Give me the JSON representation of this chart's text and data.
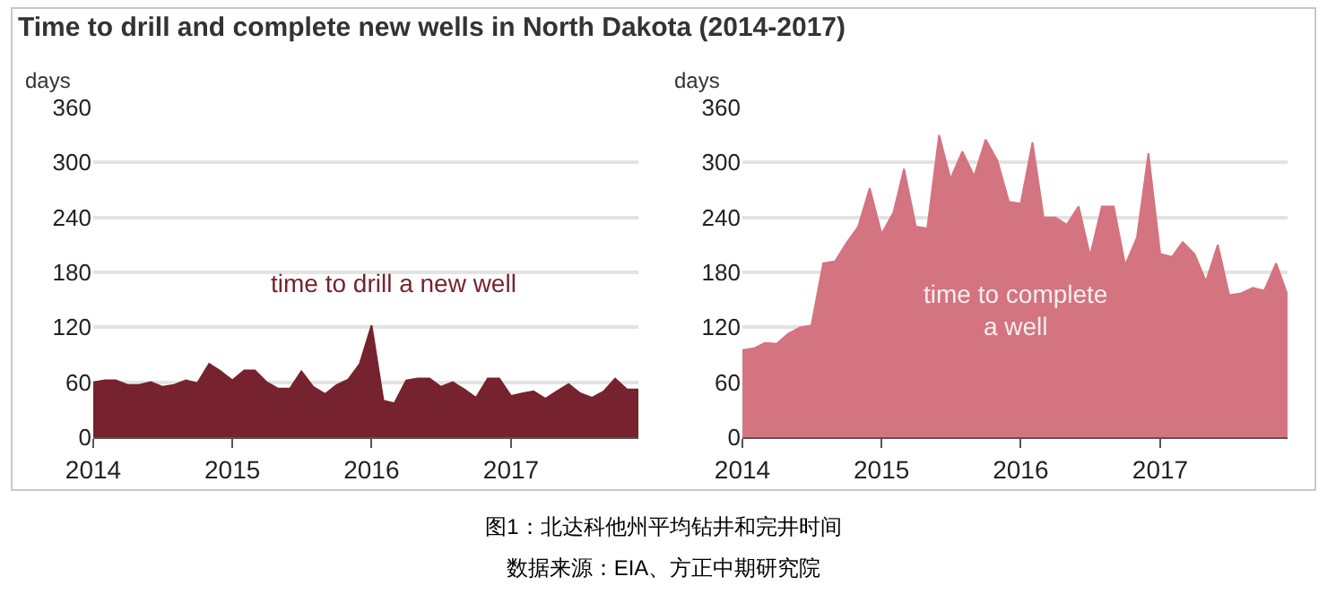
{
  "chart_data": [
    {
      "type": "area",
      "title": "Time to drill and complete new wells in North Dakota (2014-2017)",
      "ylabel": "days",
      "x": [
        "2014-01",
        "2014-02",
        "2014-03",
        "2014-04",
        "2014-05",
        "2014-06",
        "2014-07",
        "2014-08",
        "2014-09",
        "2014-10",
        "2014-11",
        "2014-12",
        "2015-01",
        "2015-02",
        "2015-03",
        "2015-04",
        "2015-05",
        "2015-06",
        "2015-07",
        "2015-08",
        "2015-09",
        "2015-10",
        "2015-11",
        "2015-12",
        "2016-01",
        "2016-02",
        "2016-03",
        "2016-04",
        "2016-05",
        "2016-06",
        "2016-07",
        "2016-08",
        "2016-09",
        "2016-10",
        "2016-11",
        "2016-12",
        "2017-01",
        "2017-02",
        "2017-03",
        "2017-04",
        "2017-05",
        "2017-06",
        "2017-07",
        "2017-08",
        "2017-09",
        "2017-10",
        "2017-11",
        "2017-12"
      ],
      "series": [
        {
          "name": "time to drill a new well",
          "color": "#76232f",
          "values": [
            60,
            62,
            62,
            57,
            57,
            60,
            55,
            57,
            62,
            59,
            80,
            72,
            62,
            73,
            73,
            60,
            53,
            53,
            72,
            55,
            47,
            57,
            63,
            80,
            122,
            40,
            37,
            62,
            64,
            64,
            55,
            60,
            52,
            43,
            64,
            64,
            45,
            48,
            50,
            42,
            50,
            58,
            48,
            43,
            50,
            64,
            52,
            52
          ]
        }
      ],
      "xlim": [
        "2014-01",
        "2017-12"
      ],
      "xticks": [
        "2014",
        "2015",
        "2016",
        "2017"
      ],
      "ylim": [
        0,
        360
      ],
      "yticks": [
        0,
        60,
        120,
        180,
        240,
        300,
        360
      ],
      "grid": "y",
      "legend": false,
      "annotations": [
        "图1：北达科他州平均钻井和完井时间",
        "数据来源：EIA、方正中期研究院"
      ]
    },
    {
      "type": "area",
      "ylabel": "days",
      "x": [
        "2014-01",
        "2014-02",
        "2014-03",
        "2014-04",
        "2014-05",
        "2014-06",
        "2014-07",
        "2014-08",
        "2014-09",
        "2014-10",
        "2014-11",
        "2014-12",
        "2015-01",
        "2015-02",
        "2015-03",
        "2015-04",
        "2015-05",
        "2015-06",
        "2015-07",
        "2015-08",
        "2015-09",
        "2015-10",
        "2015-11",
        "2015-12",
        "2016-01",
        "2016-02",
        "2016-03",
        "2016-04",
        "2016-05",
        "2016-06",
        "2016-07",
        "2016-08",
        "2016-09",
        "2016-10",
        "2016-11",
        "2016-12",
        "2017-01",
        "2017-02",
        "2017-03",
        "2017-04",
        "2017-05",
        "2017-06",
        "2017-07",
        "2017-08",
        "2017-09",
        "2017-10",
        "2017-11",
        "2017-12"
      ],
      "series": [
        {
          "name": "time to complete\na well",
          "color": "#d47480",
          "values": [
            95,
            97,
            103,
            102,
            113,
            120,
            122,
            190,
            192,
            212,
            230,
            272,
            222,
            245,
            293,
            230,
            228,
            330,
            282,
            312,
            285,
            325,
            302,
            257,
            255,
            322,
            240,
            240,
            232,
            252,
            198,
            252,
            252,
            188,
            218,
            310,
            200,
            197,
            213,
            200,
            170,
            210,
            155,
            157,
            163,
            160,
            190,
            155
          ]
        }
      ],
      "xlim": [
        "2014-01",
        "2017-12"
      ],
      "xticks": [
        "2014",
        "2015",
        "2016",
        "2017"
      ],
      "ylim": [
        0,
        360
      ],
      "yticks": [
        0,
        60,
        120,
        180,
        240,
        300,
        360
      ],
      "grid": "y",
      "legend": false
    }
  ]
}
